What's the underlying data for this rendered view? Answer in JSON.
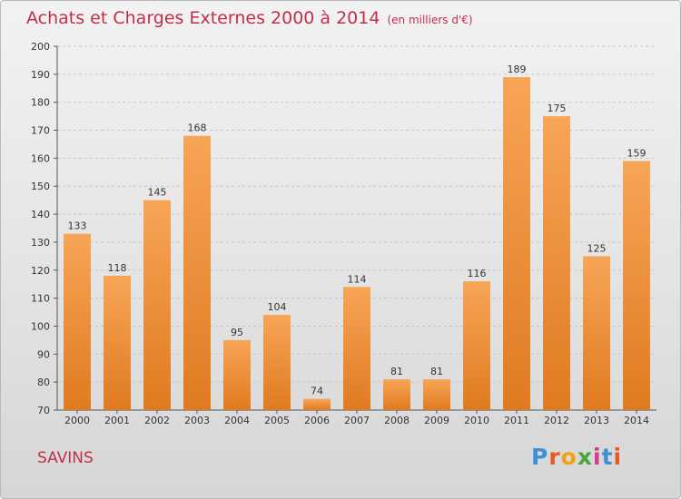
{
  "chart_data": {
    "type": "bar",
    "title": "Achats et Charges Externes 2000 à 2014",
    "subtitle": "(en milliers d'€)",
    "categories": [
      "2000",
      "2001",
      "2002",
      "2003",
      "2004",
      "2005",
      "2006",
      "2007",
      "2008",
      "2009",
      "2010",
      "2011",
      "2012",
      "2013",
      "2014"
    ],
    "values": [
      133,
      118,
      145,
      168,
      95,
      104,
      74,
      114,
      81,
      81,
      116,
      189,
      175,
      125,
      159
    ],
    "ylim": [
      70,
      200
    ],
    "yticks": [
      70,
      80,
      90,
      100,
      110,
      120,
      130,
      140,
      150,
      160,
      170,
      180,
      190,
      200
    ],
    "xlabel": "",
    "ylabel": "",
    "grid": true,
    "legend": "none",
    "bar_color": "#f0913a",
    "grid_color": "#c6c6c6"
  },
  "footer": {
    "commune": "SAVINS",
    "logo_letters": [
      "P",
      "r",
      "o",
      "x",
      "i",
      "t",
      "i"
    ]
  }
}
